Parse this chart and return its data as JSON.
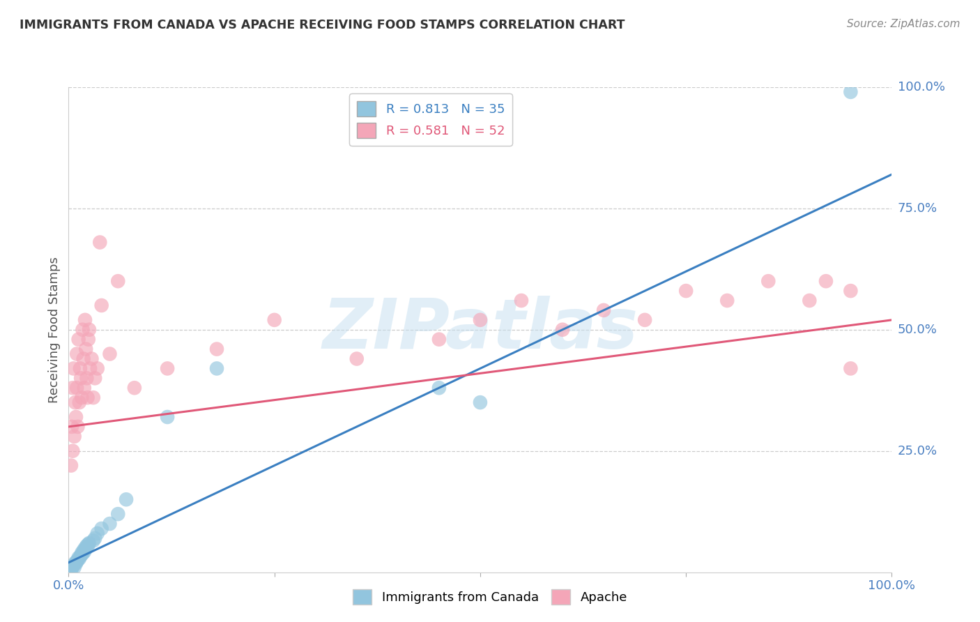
{
  "title": "IMMIGRANTS FROM CANADA VS APACHE RECEIVING FOOD STAMPS CORRELATION CHART",
  "source": "Source: ZipAtlas.com",
  "ylabel": "Receiving Food Stamps",
  "xlim": [
    0.0,
    1.0
  ],
  "ylim": [
    0.0,
    1.0
  ],
  "blue_R": 0.813,
  "blue_N": 35,
  "pink_R": 0.581,
  "pink_N": 52,
  "blue_color": "#92c5de",
  "pink_color": "#f4a6b8",
  "blue_line_color": "#3a7fc1",
  "pink_line_color": "#e05878",
  "label_color": "#4a7fc1",
  "watermark": "ZIPatlas",
  "watermark_color": "#c5dff0",
  "background_color": "#ffffff",
  "blue_scatter_x": [
    0.003,
    0.004,
    0.005,
    0.006,
    0.007,
    0.008,
    0.009,
    0.01,
    0.011,
    0.012,
    0.013,
    0.014,
    0.015,
    0.016,
    0.017,
    0.018,
    0.019,
    0.02,
    0.021,
    0.022,
    0.023,
    0.024,
    0.025,
    0.03,
    0.032,
    0.035,
    0.04,
    0.05,
    0.06,
    0.07,
    0.12,
    0.18,
    0.45,
    0.95,
    0.5
  ],
  "blue_scatter_y": [
    0.005,
    0.008,
    0.012,
    0.015,
    0.01,
    0.02,
    0.018,
    0.022,
    0.025,
    0.03,
    0.028,
    0.032,
    0.035,
    0.04,
    0.038,
    0.045,
    0.042,
    0.05,
    0.048,
    0.055,
    0.052,
    0.058,
    0.06,
    0.065,
    0.07,
    0.08,
    0.09,
    0.1,
    0.12,
    0.15,
    0.32,
    0.42,
    0.38,
    0.99,
    0.35
  ],
  "pink_scatter_x": [
    0.003,
    0.004,
    0.005,
    0.005,
    0.006,
    0.007,
    0.008,
    0.009,
    0.01,
    0.01,
    0.011,
    0.012,
    0.013,
    0.014,
    0.015,
    0.016,
    0.017,
    0.018,
    0.019,
    0.02,
    0.021,
    0.022,
    0.023,
    0.024,
    0.025,
    0.026,
    0.028,
    0.03,
    0.032,
    0.035,
    0.038,
    0.04,
    0.05,
    0.06,
    0.08,
    0.12,
    0.18,
    0.25,
    0.35,
    0.45,
    0.5,
    0.55,
    0.6,
    0.65,
    0.7,
    0.75,
    0.8,
    0.85,
    0.9,
    0.92,
    0.95,
    0.95
  ],
  "pink_scatter_y": [
    0.22,
    0.3,
    0.25,
    0.38,
    0.42,
    0.28,
    0.35,
    0.32,
    0.45,
    0.38,
    0.3,
    0.48,
    0.35,
    0.42,
    0.4,
    0.36,
    0.5,
    0.44,
    0.38,
    0.52,
    0.46,
    0.4,
    0.36,
    0.48,
    0.5,
    0.42,
    0.44,
    0.36,
    0.4,
    0.42,
    0.68,
    0.55,
    0.45,
    0.6,
    0.38,
    0.42,
    0.46,
    0.52,
    0.44,
    0.48,
    0.52,
    0.56,
    0.5,
    0.54,
    0.52,
    0.58,
    0.56,
    0.6,
    0.56,
    0.6,
    0.58,
    0.42
  ],
  "blue_line_x0": 0.0,
  "blue_line_y0": 0.02,
  "blue_line_x1": 1.0,
  "blue_line_y1": 0.82,
  "pink_line_x0": 0.0,
  "pink_line_y0": 0.3,
  "pink_line_x1": 1.0,
  "pink_line_y1": 0.52
}
